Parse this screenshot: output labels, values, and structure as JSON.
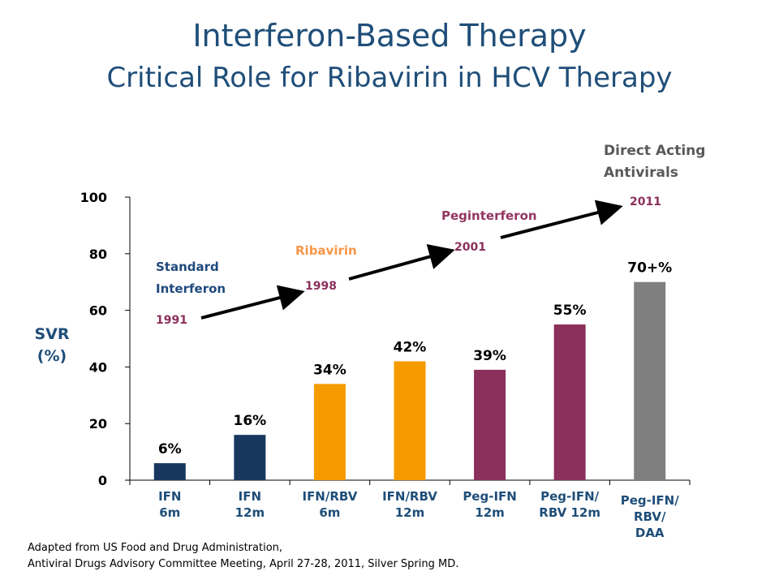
{
  "header": {
    "title": "Interferon-Based Therapy",
    "subtitle": "Critical Role for Ribavirin in HCV Therapy"
  },
  "footnote": {
    "line1": "Adapted from US Food and Drug Administration,",
    "line2": "Antiviral Drugs Advisory Committee Meeting, April 27-28, 2011, Silver Spring MD."
  },
  "colors": {
    "title": "#1f4e79",
    "navy": "#17375e",
    "orange": "#f59b00",
    "purple": "#8b2f5b",
    "gray": "#7f7f7f",
    "label_orange": "#f79646",
    "label_purple": "#93365f",
    "label_blue": "#1f497d",
    "label_gray": "#595959"
  },
  "chart_data": {
    "type": "bar",
    "ylabel": [
      "SVR",
      "(%)"
    ],
    "ylim": [
      0,
      100
    ],
    "yticks": [
      "0",
      "20",
      "40",
      "60",
      "80",
      "100"
    ],
    "categories": [
      [
        "IFN",
        "6m"
      ],
      [
        "IFN",
        "12m"
      ],
      [
        "IFN/RBV",
        "6m"
      ],
      [
        "IFN/RBV",
        "12m"
      ],
      [
        "Peg-IFN",
        "12m"
      ],
      [
        "Peg-IFN/",
        "RBV 12m"
      ],
      [
        "Peg-IFN/",
        "RBV/",
        "DAA"
      ]
    ],
    "values": [
      6,
      16,
      34,
      42,
      39,
      55,
      70
    ],
    "data_labels": [
      "6%",
      "16%",
      "34%",
      "42%",
      "39%",
      "55%",
      "70+%"
    ],
    "bar_colors": [
      "navy",
      "navy",
      "orange",
      "orange",
      "purple",
      "purple",
      "gray"
    ],
    "timeline": [
      {
        "label": [
          "Standard",
          "Interferon"
        ],
        "year": "1991",
        "color": "label_blue"
      },
      {
        "label": [
          "Ribavirin"
        ],
        "year": "1998",
        "color": "label_orange"
      },
      {
        "label": [
          "Peginterferon"
        ],
        "year": "2001",
        "color": "label_purple"
      },
      {
        "label": [
          "Direct Acting",
          "Antivirals"
        ],
        "year": "2011",
        "color": "label_gray"
      }
    ],
    "grid": false,
    "legend": "none"
  }
}
